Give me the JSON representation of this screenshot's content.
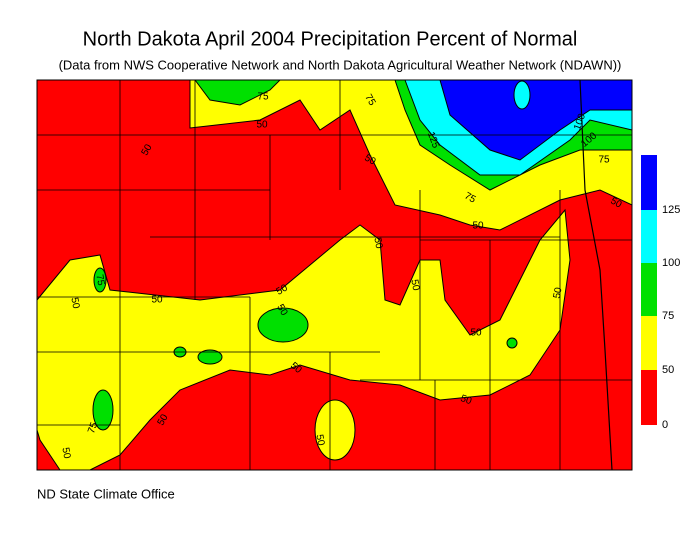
{
  "title": "North Dakota April 2004 Precipitation Percent of Normal",
  "subtitle": "(Data from NWS Cooperative Network and North Dakota Agricultural Weather Network (NDAWN))",
  "credit": "ND State Climate Office",
  "legend": {
    "labels": [
      "125",
      "100",
      "75",
      "50",
      "0"
    ]
  },
  "contour_labels": [
    "75",
    "75",
    "50",
    "50",
    "50",
    "125",
    "100",
    "100",
    "75",
    "75",
    "50",
    "50",
    "50",
    "50",
    "50",
    "75",
    "50",
    "50",
    "50",
    "50",
    "50",
    "50",
    "50",
    "75",
    "50",
    "50",
    "50"
  ]
}
